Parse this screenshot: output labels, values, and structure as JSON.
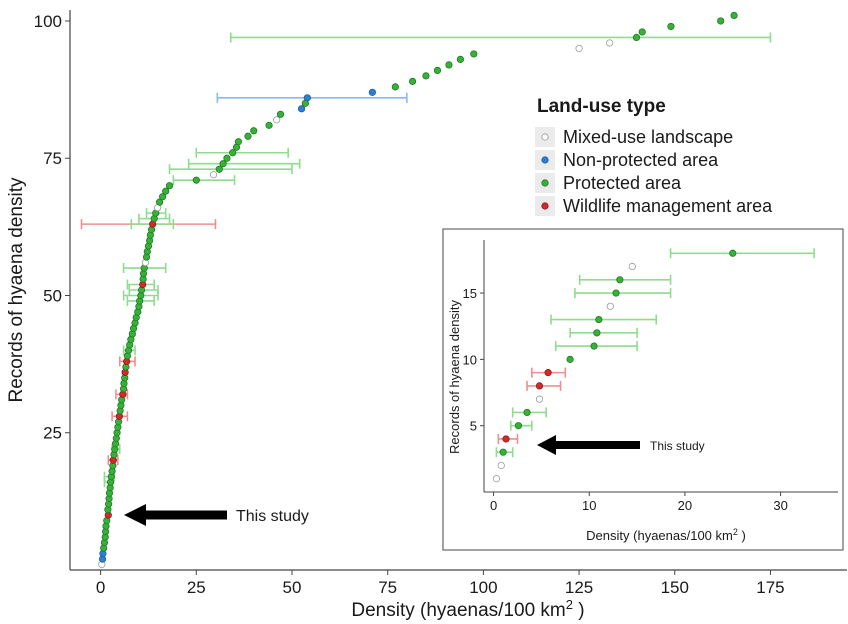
{
  "chart_data": [
    {
      "type": "scatter",
      "xlabel": "Density (hyaenas/100 km",
      "xlabel_sup": "2",
      "xlabel_close": " )",
      "ylabel": "Records of hyaena density",
      "xlim": [
        -8,
        195
      ],
      "ylim": [
        0,
        102
      ],
      "xticks": [
        0,
        25,
        50,
        75,
        100,
        125,
        150,
        175
      ],
      "yticks": [
        25,
        50,
        75,
        100
      ],
      "legend": {
        "title": "Land-use type",
        "position": "right",
        "entries": [
          {
            "label": "Mixed-use landscape",
            "color": "#ffffff",
            "stroke": "#9a9a9a"
          },
          {
            "label": "Non-protected area",
            "color": "#2e7fd1",
            "stroke": "#1f5f9e"
          },
          {
            "label": "Protected area",
            "color": "#37b13a",
            "stroke": "#207a23"
          },
          {
            "label": "Wildlife management area",
            "color": "#d12a2a",
            "stroke": "#8d1a1a"
          }
        ]
      },
      "annotation": {
        "text": "This study",
        "x": 5,
        "y": 10
      },
      "points": [
        [
          0.3,
          1,
          "m"
        ],
        [
          0.5,
          2,
          "n"
        ],
        [
          0.6,
          3,
          "n"
        ],
        [
          0.8,
          4,
          "p"
        ],
        [
          1.0,
          5,
          "p"
        ],
        [
          1.2,
          6,
          "p"
        ],
        [
          1.3,
          7,
          "p"
        ],
        [
          1.4,
          8,
          "p"
        ],
        [
          1.6,
          9,
          "p"
        ],
        [
          2.0,
          10,
          "w"
        ],
        [
          1.9,
          11,
          "p"
        ],
        [
          2.1,
          12,
          "p"
        ],
        [
          2.2,
          13,
          "p"
        ],
        [
          2.3,
          14,
          "p"
        ],
        [
          2.5,
          15,
          "p"
        ],
        [
          2.6,
          16,
          "p"
        ],
        [
          2.8,
          17,
          "p"
        ],
        [
          3.0,
          18,
          "p"
        ],
        [
          3.2,
          19,
          "p"
        ],
        [
          3.3,
          20,
          "w"
        ],
        [
          3.5,
          21,
          "p"
        ],
        [
          3.7,
          22,
          "p"
        ],
        [
          3.9,
          23,
          "p"
        ],
        [
          4.1,
          24,
          "p"
        ],
        [
          4.3,
          25,
          "p"
        ],
        [
          4.5,
          26,
          "p"
        ],
        [
          4.7,
          27,
          "p"
        ],
        [
          4.9,
          28,
          "w"
        ],
        [
          5.1,
          29,
          "p"
        ],
        [
          5.3,
          30,
          "p"
        ],
        [
          5.5,
          31,
          "p"
        ],
        [
          5.8,
          32,
          "w"
        ],
        [
          6.0,
          33,
          "p"
        ],
        [
          6.1,
          34,
          "p"
        ],
        [
          6.3,
          35,
          "p"
        ],
        [
          6.4,
          36,
          "w"
        ],
        [
          6.6,
          37,
          "p"
        ],
        [
          6.8,
          38,
          "w"
        ],
        [
          7.0,
          39,
          "p"
        ],
        [
          7.3,
          40,
          "p"
        ],
        [
          7.6,
          41,
          "p"
        ],
        [
          7.9,
          42,
          "p"
        ],
        [
          8.3,
          43,
          "p"
        ],
        [
          8.6,
          44,
          "p"
        ],
        [
          9.0,
          45,
          "p"
        ],
        [
          9.3,
          46,
          "p"
        ],
        [
          9.7,
          47,
          "p"
        ],
        [
          10.0,
          48,
          "p"
        ],
        [
          10.2,
          49,
          "p"
        ],
        [
          10.5,
          50,
          "p"
        ],
        [
          10.7,
          51,
          "p"
        ],
        [
          11.0,
          52,
          "w"
        ],
        [
          11.1,
          53,
          "p"
        ],
        [
          11.2,
          54,
          "p"
        ],
        [
          11.4,
          55,
          "p"
        ],
        [
          11.7,
          56,
          "m"
        ],
        [
          12.0,
          57,
          "p"
        ],
        [
          12.2,
          58,
          "p"
        ],
        [
          12.5,
          59,
          "p"
        ],
        [
          12.8,
          60,
          "p"
        ],
        [
          13.0,
          61,
          "p"
        ],
        [
          13.3,
          62,
          "p"
        ],
        [
          13.6,
          63,
          "w"
        ],
        [
          14.0,
          64,
          "p"
        ],
        [
          14.4,
          65,
          "p"
        ],
        [
          14.9,
          66,
          "m"
        ],
        [
          15.4,
          67,
          "p"
        ],
        [
          16.2,
          68,
          "p"
        ],
        [
          17.0,
          69,
          "p"
        ],
        [
          18.0,
          70,
          "p"
        ],
        [
          25.0,
          71,
          "p"
        ],
        [
          29.5,
          72,
          "m"
        ],
        [
          31.0,
          73,
          "p"
        ],
        [
          32.0,
          74,
          "p"
        ],
        [
          33.0,
          75,
          "p"
        ],
        [
          34.5,
          76,
          "p"
        ],
        [
          35.5,
          77,
          "p"
        ],
        [
          36.0,
          78,
          "p"
        ],
        [
          38.5,
          79,
          "p"
        ],
        [
          40.0,
          80,
          "p"
        ],
        [
          44.0,
          81,
          "p"
        ],
        [
          46.0,
          82,
          "m"
        ],
        [
          47.0,
          83,
          "p"
        ],
        [
          52.5,
          84,
          "n"
        ],
        [
          53.5,
          85,
          "p"
        ],
        [
          54.0,
          86,
          "n"
        ],
        [
          71.0,
          87,
          "n"
        ],
        [
          77.0,
          88,
          "p"
        ],
        [
          81.5,
          89,
          "p"
        ],
        [
          85.0,
          90,
          "p"
        ],
        [
          88.0,
          91,
          "p"
        ],
        [
          91.0,
          92,
          "p"
        ],
        [
          94.0,
          93,
          "p"
        ],
        [
          97.5,
          94,
          "p"
        ],
        [
          125.0,
          95,
          "m"
        ],
        [
          133.0,
          96,
          "m"
        ],
        [
          140.0,
          97,
          "p"
        ],
        [
          141.5,
          98,
          "p"
        ],
        [
          149.0,
          99,
          "p"
        ],
        [
          162.0,
          100,
          "p"
        ],
        [
          165.5,
          101,
          "p"
        ]
      ],
      "error_bars": [
        [
          34.0,
          175.0,
          97,
          "p"
        ],
        [
          30.5,
          80.0,
          86,
          "n"
        ],
        [
          25.0,
          49.0,
          76,
          "p"
        ],
        [
          23.0,
          52.0,
          74,
          "p"
        ],
        [
          18.0,
          50.0,
          73,
          "p"
        ],
        [
          19.0,
          35.0,
          71,
          "p"
        ],
        [
          -5.0,
          30.0,
          63,
          "w"
        ],
        [
          8.0,
          19.0,
          63,
          "p"
        ],
        [
          10.0,
          18.0,
          64,
          "p"
        ],
        [
          12.0,
          17.0,
          65,
          "p"
        ],
        [
          6.0,
          17.0,
          55,
          "p"
        ],
        [
          7.0,
          14.0,
          52,
          "p"
        ],
        [
          7.5,
          15.0,
          51,
          "p"
        ],
        [
          6.0,
          15.0,
          50,
          "p"
        ],
        [
          7.0,
          14.0,
          49,
          "p"
        ],
        [
          6.0,
          9.0,
          40,
          "p"
        ],
        [
          5.0,
          9.0,
          38,
          "w"
        ],
        [
          4.0,
          7.0,
          32,
          "w"
        ],
        [
          3.0,
          7.0,
          28,
          "w"
        ],
        [
          3.0,
          5.0,
          22,
          "p"
        ],
        [
          2.0,
          4.5,
          20,
          "w"
        ],
        [
          1.0,
          3.5,
          17,
          "p"
        ],
        [
          1.0,
          3.0,
          16,
          "p"
        ]
      ]
    },
    {
      "type": "scatter",
      "inset": true,
      "xlabel": "Density (hyaenas/100 km",
      "xlabel_sup": "2",
      "xlabel_close": " )",
      "ylabel": "Records of  hyaena density",
      "xlim": [
        -1,
        36
      ],
      "ylim": [
        0,
        19
      ],
      "xticks": [
        0,
        10,
        20,
        30
      ],
      "yticks": [
        5,
        10,
        15
      ],
      "annotation": {
        "text": "This study",
        "x": 2.2,
        "y": 4.2
      },
      "points": [
        [
          0.3,
          1,
          "m"
        ],
        [
          0.8,
          2,
          "m"
        ],
        [
          1.0,
          3,
          "p"
        ],
        [
          1.3,
          4,
          "w"
        ],
        [
          2.6,
          5,
          "p"
        ],
        [
          3.5,
          6,
          "p"
        ],
        [
          4.8,
          7,
          "m"
        ],
        [
          4.8,
          8,
          "w"
        ],
        [
          5.7,
          9,
          "w"
        ],
        [
          8.0,
          10,
          "p"
        ],
        [
          10.5,
          11,
          "p"
        ],
        [
          10.8,
          12,
          "p"
        ],
        [
          11.0,
          13,
          "p"
        ],
        [
          12.2,
          14,
          "m"
        ],
        [
          12.8,
          15,
          "p"
        ],
        [
          13.2,
          16,
          "p"
        ],
        [
          14.5,
          17,
          "m"
        ],
        [
          25.0,
          18,
          "p"
        ]
      ],
      "error_bars": [
        [
          18.5,
          33.5,
          18,
          "p"
        ],
        [
          9.0,
          18.5,
          16,
          "p"
        ],
        [
          8.5,
          18.5,
          15,
          "p"
        ],
        [
          6.0,
          17.0,
          13,
          "p"
        ],
        [
          8.0,
          15.0,
          12,
          "p"
        ],
        [
          6.5,
          15.0,
          11,
          "p"
        ],
        [
          4.0,
          7.5,
          9,
          "w"
        ],
        [
          3.5,
          7.0,
          8,
          "w"
        ],
        [
          2.0,
          5.5,
          6,
          "p"
        ],
        [
          1.8,
          4.0,
          5,
          "p"
        ],
        [
          0.5,
          2.5,
          4,
          "w"
        ],
        [
          0.3,
          2.0,
          3,
          "p"
        ]
      ]
    }
  ]
}
